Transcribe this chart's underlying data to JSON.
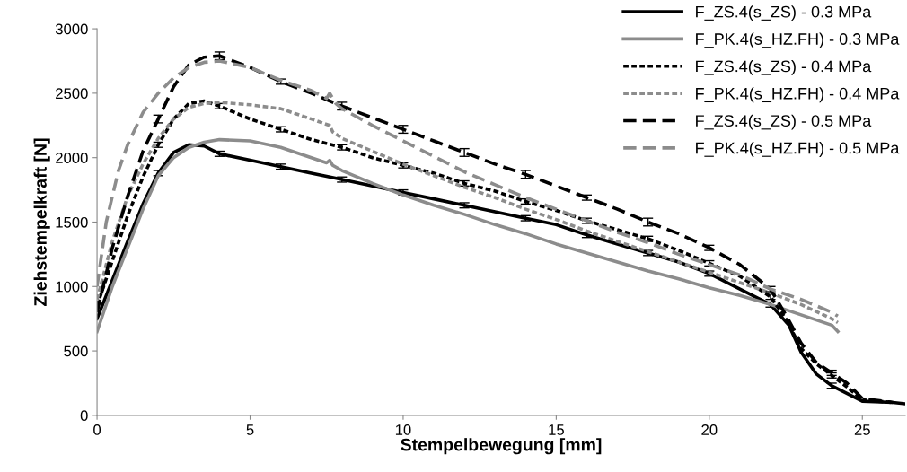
{
  "chart_data": {
    "type": "line",
    "xlabel": "Stempelbewegung [mm]",
    "ylabel": "Ziehstempelkraft [N]",
    "xlim": [
      0,
      26.4
    ],
    "ylim": [
      0,
      3000
    ],
    "xticks": [
      0,
      5,
      10,
      15,
      20,
      25
    ],
    "yticks": [
      0,
      500,
      1000,
      1500,
      2000,
      2500,
      3000
    ],
    "grid": false,
    "legend": "top right",
    "marker": "none",
    "series": [
      {
        "name": "F_ZS.4(s_ZS) - 0.3 MPa",
        "color": "#000000",
        "line_style": "solid",
        "x": [
          0,
          0.5,
          1,
          1.5,
          2,
          2.5,
          3,
          3.5,
          4,
          5,
          6,
          7,
          8,
          9,
          10,
          11,
          12,
          13,
          14,
          15,
          16,
          17,
          18,
          19,
          20,
          21,
          22,
          22.6,
          23,
          23.5,
          24,
          25,
          26,
          26.4
        ],
        "values": [
          750,
          1050,
          1350,
          1640,
          1880,
          2040,
          2100,
          2090,
          2030,
          1980,
          1930,
          1880,
          1830,
          1780,
          1730,
          1680,
          1630,
          1580,
          1530,
          1480,
          1400,
          1330,
          1260,
          1190,
          1100,
          980,
          860,
          700,
          490,
          320,
          230,
          110,
          100,
          90
        ],
        "errors": [
          null,
          null,
          null,
          null,
          20,
          null,
          null,
          null,
          20,
          null,
          20,
          null,
          20,
          null,
          20,
          null,
          20,
          null,
          20,
          null,
          20,
          null,
          20,
          null,
          20,
          null,
          20,
          null,
          null,
          null,
          20,
          null,
          null,
          null
        ]
      },
      {
        "name": "F_PK.4(s_HZ.FH) - 0.3 MPa",
        "color": "#8c8c8c",
        "line_style": "solid",
        "x": [
          0,
          0.5,
          1,
          1.5,
          2,
          2.5,
          3,
          3.5,
          4,
          5,
          6,
          7,
          7.5,
          7.6,
          7.7,
          8,
          9,
          10,
          11,
          12,
          13,
          14,
          15,
          16,
          17,
          18,
          19,
          20,
          21,
          22,
          23,
          24,
          24.2
        ],
        "values": [
          650,
          1000,
          1300,
          1600,
          1860,
          2000,
          2080,
          2120,
          2140,
          2130,
          2080,
          2000,
          1960,
          1980,
          1940,
          1900,
          1800,
          1710,
          1630,
          1560,
          1480,
          1410,
          1330,
          1260,
          1190,
          1120,
          1060,
          990,
          930,
          860,
          780,
          700,
          650
        ]
      },
      {
        "name": "F_ZS.4(s_ZS) - 0.4 MPa",
        "color": "#000000",
        "line_style": "dotted",
        "x": [
          0,
          0.5,
          1,
          1.5,
          2,
          2.5,
          3,
          3.5,
          4,
          5,
          6,
          7,
          8,
          9,
          10,
          11,
          12,
          13,
          14,
          15,
          16,
          17,
          18,
          19,
          20,
          21,
          22,
          22.5,
          23,
          23.5,
          24,
          24.5,
          25,
          26
        ],
        "values": [
          850,
          1200,
          1550,
          1850,
          2100,
          2300,
          2420,
          2440,
          2400,
          2300,
          2220,
          2140,
          2080,
          2000,
          1940,
          1880,
          1800,
          1740,
          1660,
          1590,
          1510,
          1440,
          1370,
          1280,
          1180,
          1080,
          920,
          750,
          520,
          400,
          310,
          220,
          120,
          100
        ],
        "errors": [
          null,
          null,
          null,
          null,
          20,
          null,
          null,
          null,
          20,
          null,
          20,
          null,
          20,
          null,
          20,
          null,
          20,
          null,
          20,
          null,
          20,
          null,
          20,
          null,
          20,
          null,
          20,
          null,
          null,
          null,
          20,
          null,
          null,
          null
        ]
      },
      {
        "name": "F_PK.4(s_HZ.FH) - 0.4 MPa",
        "color": "#8c8c8c",
        "line_style": "dotted",
        "x": [
          0,
          0.5,
          1,
          1.5,
          2,
          2.5,
          3,
          3.5,
          4,
          5,
          6,
          7,
          7.6,
          7.7,
          8,
          9,
          10,
          11,
          12,
          13,
          14,
          15,
          16,
          17,
          18,
          19,
          20,
          21,
          22,
          23,
          24,
          24.2
        ],
        "values": [
          900,
          1350,
          1700,
          1950,
          2150,
          2300,
          2390,
          2420,
          2430,
          2410,
          2380,
          2300,
          2250,
          2200,
          2150,
          2050,
          1950,
          1860,
          1770,
          1690,
          1600,
          1520,
          1430,
          1350,
          1270,
          1190,
          1110,
          1030,
          950,
          860,
          750,
          720
        ]
      },
      {
        "name": "F_ZS.4(s_ZS) - 0.5 MPa",
        "color": "#000000",
        "line_style": "dashed",
        "x": [
          0,
          0.5,
          1,
          1.5,
          2,
          2.5,
          3,
          3.5,
          4,
          5,
          6,
          7,
          8,
          9,
          10,
          11,
          12,
          13,
          14,
          15,
          16,
          17,
          18,
          19,
          20,
          21,
          22,
          22.5,
          23,
          23.5,
          24,
          24.5,
          25,
          26
        ],
        "values": [
          800,
          1300,
          1700,
          2050,
          2300,
          2550,
          2720,
          2780,
          2790,
          2700,
          2590,
          2500,
          2400,
          2310,
          2220,
          2130,
          2040,
          1950,
          1870,
          1780,
          1690,
          1600,
          1500,
          1410,
          1300,
          1170,
          980,
          780,
          560,
          410,
          330,
          250,
          130,
          100
        ],
        "errors": [
          null,
          null,
          null,
          null,
          30,
          null,
          null,
          null,
          30,
          null,
          20,
          null,
          30,
          null,
          30,
          null,
          30,
          null,
          30,
          null,
          20,
          null,
          30,
          null,
          20,
          null,
          20,
          null,
          null,
          null,
          20,
          null,
          null,
          null
        ]
      },
      {
        "name": "F_PK.4(s_HZ.FH) - 0.5 MPa",
        "color": "#8c8c8c",
        "line_style": "dashed",
        "x": [
          0,
          0.3,
          0.7,
          1,
          1.5,
          2,
          2.5,
          3,
          3.5,
          4,
          5,
          6,
          7,
          7.5,
          7.6,
          7.8,
          8,
          9,
          10,
          11,
          12,
          13,
          14,
          15,
          16,
          17,
          18,
          19,
          20,
          21,
          22,
          23,
          24,
          24.2
        ],
        "values": [
          1000,
          1500,
          1900,
          2100,
          2350,
          2500,
          2620,
          2700,
          2740,
          2750,
          2700,
          2600,
          2520,
          2460,
          2500,
          2420,
          2380,
          2250,
          2130,
          2010,
          1890,
          1790,
          1690,
          1600,
          1510,
          1420,
          1340,
          1250,
          1170,
          1090,
          980,
          900,
          800,
          770
        ]
      }
    ]
  }
}
